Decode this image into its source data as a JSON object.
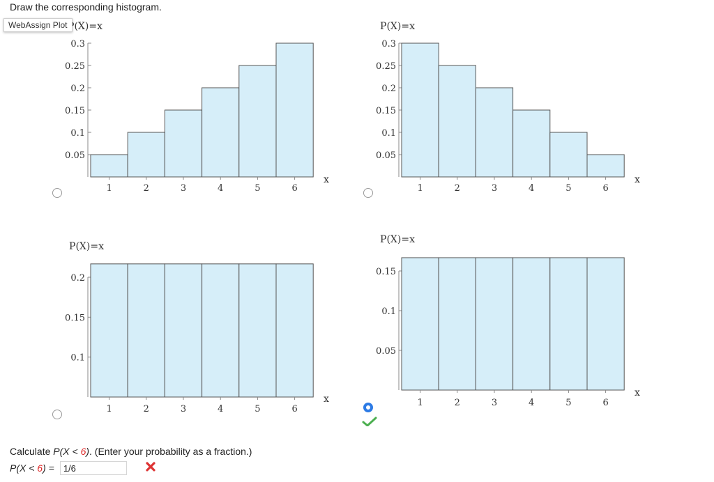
{
  "prompt": "Draw the corresponding histogram.",
  "tooltip": "WebAssign Plot",
  "chart_data": [
    {
      "type": "bar",
      "ylabel": "P(X)=x",
      "xlabel": "x",
      "categories": [
        "1",
        "2",
        "3",
        "4",
        "5",
        "6"
      ],
      "values": [
        0.05,
        0.1,
        0.15,
        0.2,
        0.25,
        0.3
      ],
      "ylim": [
        0,
        0.3
      ],
      "yticks": [
        "0.05",
        "0.1",
        "0.15",
        "0.2",
        "0.25",
        "0.3"
      ]
    },
    {
      "type": "bar",
      "ylabel": "P(X)=x",
      "xlabel": "x",
      "categories": [
        "1",
        "2",
        "3",
        "4",
        "5",
        "6"
      ],
      "values": [
        0.3,
        0.25,
        0.2,
        0.15,
        0.1,
        0.05
      ],
      "ylim": [
        0,
        0.3
      ],
      "yticks": [
        "0.05",
        "0.1",
        "0.15",
        "0.2",
        "0.25",
        "0.3"
      ]
    },
    {
      "type": "bar",
      "ylabel": "P(X)=x",
      "xlabel": "x",
      "categories": [
        "1",
        "2",
        "3",
        "4",
        "5",
        "6"
      ],
      "values": [
        0.2167,
        0.2167,
        0.2167,
        0.2167,
        0.2167,
        0.2167
      ],
      "ylim": [
        0.05,
        0.2
      ],
      "yticks": [
        "0.1",
        "0.15",
        "0.2"
      ]
    },
    {
      "type": "bar",
      "ylabel": "P(X)=x",
      "xlabel": "x",
      "categories": [
        "1",
        "2",
        "3",
        "4",
        "5",
        "6"
      ],
      "values": [
        0.1667,
        0.1667,
        0.1667,
        0.1667,
        0.1667,
        0.1667
      ],
      "ylim": [
        0,
        0.15
      ],
      "yticks": [
        "0.05",
        "0.1",
        "0.15"
      ]
    }
  ],
  "options": [
    {
      "selected": false
    },
    {
      "selected": false
    },
    {
      "selected": false
    },
    {
      "selected": true,
      "status": "correct"
    }
  ],
  "colors": {
    "bar_fill": "#d6eef9",
    "bar_stroke": "#555555",
    "radio_selected": "#2d7be5",
    "correct": "#4caf50",
    "wrong": "#dd3333"
  },
  "question": {
    "text_before": "Calculate ",
    "expr_prefix": "P(X < ",
    "expr_value": "6",
    "expr_suffix": ")",
    "text_after": ". (Enter your probability as a fraction.)"
  },
  "answer": {
    "label_prefix": "P(X < ",
    "label_value": "6",
    "label_suffix": ") =",
    "value": "1/6",
    "status_icon": "x-mark-icon"
  }
}
